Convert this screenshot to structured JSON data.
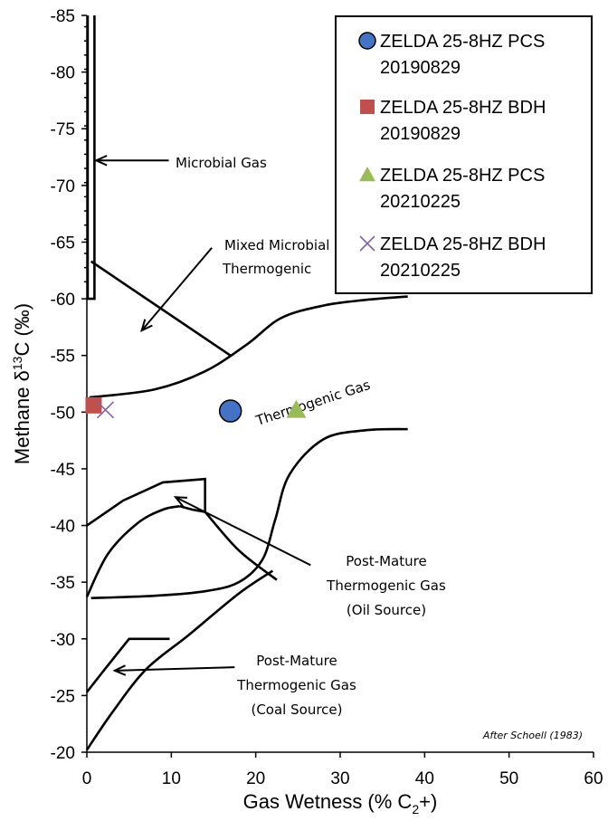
{
  "chart_data": {
    "type": "scatter",
    "xlabel": "Gas Wetness (% C",
    "xlabel_sub": "2",
    "xlabel_tail": "+)",
    "ylabel_prefix": "Methane  δ",
    "ylabel_sup": "13",
    "ylabel_tail": "C (‰)",
    "xlim": [
      0,
      60
    ],
    "ylim": [
      -20,
      -85
    ],
    "xticks": [
      "0",
      "10",
      "20",
      "30",
      "40",
      "50",
      "60"
    ],
    "yticks": [
      "-85",
      "-80",
      "-75",
      "-70",
      "-65",
      "-60",
      "-55",
      "-50",
      "-45",
      "-40",
      "-35",
      "-30",
      "-25",
      "-20"
    ],
    "grid": false,
    "legend_position": "top-right",
    "series": [
      {
        "name_line1": "ZELDA 25-8HZ PCS",
        "name_line2": "20190829",
        "marker": "circle",
        "color": "#4472C4",
        "points": [
          {
            "x": 17,
            "y": -50.1
          }
        ]
      },
      {
        "name_line1": "ZELDA 25-8HZ BDH",
        "name_line2": "20190829",
        "marker": "square",
        "color": "#C0504D",
        "points": [
          {
            "x": 0.8,
            "y": -50.6
          }
        ]
      },
      {
        "name_line1": "ZELDA 25-8HZ PCS",
        "name_line2": "20210225",
        "marker": "triangle",
        "color": "#9BBB59",
        "points": [
          {
            "x": 24.8,
            "y": -50.2
          }
        ]
      },
      {
        "name_line1": "ZELDA 25-8HZ BDH",
        "name_line2": "20210225",
        "marker": "x",
        "color": "#8064A2",
        "points": [
          {
            "x": 2.2,
            "y": -50.2
          }
        ]
      }
    ],
    "annotations": {
      "microbial": "Microbial Gas",
      "mixed_line1": "Mixed Microbial",
      "mixed_line2": "Thermogenic",
      "thermogenic": "Thermogenic Gas",
      "oil_line1": "Post-Mature",
      "oil_line2": "Thermogenic Gas",
      "oil_line3": "(Oil Source)",
      "coal_line1": "Post-Mature",
      "coal_line2": "Thermogenic Gas",
      "coal_line3": "(Coal Source)",
      "credit": "After Schoell (1983)"
    },
    "field_boundaries": {
      "microbial_box": [
        [
          0.1,
          -85
        ],
        [
          0.1,
          -60
        ],
        [
          0.9,
          -60
        ],
        [
          0.9,
          -85
        ]
      ],
      "mixed_divider": [
        [
          0.5,
          -63.3
        ],
        [
          17,
          -55
        ]
      ],
      "thermogenic_upper": [
        [
          0.3,
          -51.3
        ],
        [
          8,
          -52
        ],
        [
          14,
          -53.6
        ],
        [
          19,
          -56
        ],
        [
          23,
          -58.3
        ],
        [
          28,
          -59.4
        ],
        [
          33,
          -59.9
        ],
        [
          38,
          -60.2
        ]
      ],
      "thermogenic_lower": [
        [
          0.5,
          -33.6
        ],
        [
          8,
          -33.8
        ],
        [
          14,
          -34.2
        ],
        [
          18,
          -35
        ],
        [
          20.8,
          -37
        ],
        [
          22.3,
          -40.5
        ],
        [
          24,
          -44.5
        ],
        [
          28,
          -47.6
        ],
        [
          33,
          -48.4
        ],
        [
          38,
          -48.5
        ]
      ],
      "oil_box": [
        [
          0,
          -40
        ],
        [
          4.3,
          -42.2
        ],
        [
          9,
          -43.8
        ],
        [
          14,
          -44.1
        ],
        [
          14,
          -41.2
        ],
        [
          12.5,
          -41.4
        ],
        [
          11,
          -41.7
        ]
      ],
      "oil_inner": [
        [
          0,
          -33.7
        ],
        [
          2.5,
          -37.5
        ],
        [
          6,
          -40.2
        ],
        [
          9,
          -41.4
        ],
        [
          11,
          -41.7
        ]
      ],
      "oil_diag": [
        [
          14,
          -41.2
        ],
        [
          18,
          -37.8
        ],
        [
          22.5,
          -35.2
        ]
      ],
      "coal_lower": [
        [
          0,
          -20.2
        ],
        [
          3,
          -23.5
        ],
        [
          7,
          -27.3
        ],
        [
          12,
          -30.3
        ],
        [
          18,
          -34
        ],
        [
          22,
          -36
        ]
      ],
      "coal_upper": [
        [
          0,
          -25.3
        ],
        [
          2,
          -27.2
        ],
        [
          5,
          -30
        ],
        [
          9.8,
          -30
        ]
      ]
    },
    "arrows": [
      {
        "from": [
          9.7,
          -72.2
        ],
        "to": [
          1.1,
          -72.2
        ]
      },
      {
        "from": [
          14.8,
          -64.5
        ],
        "to": [
          6.5,
          -57.2
        ]
      },
      {
        "from": [
          26.5,
          -36.5
        ],
        "to": [
          10.5,
          -42.5
        ]
      },
      {
        "from": [
          17.5,
          -27.5
        ],
        "to": [
          3.3,
          -27.2
        ]
      }
    ]
  }
}
